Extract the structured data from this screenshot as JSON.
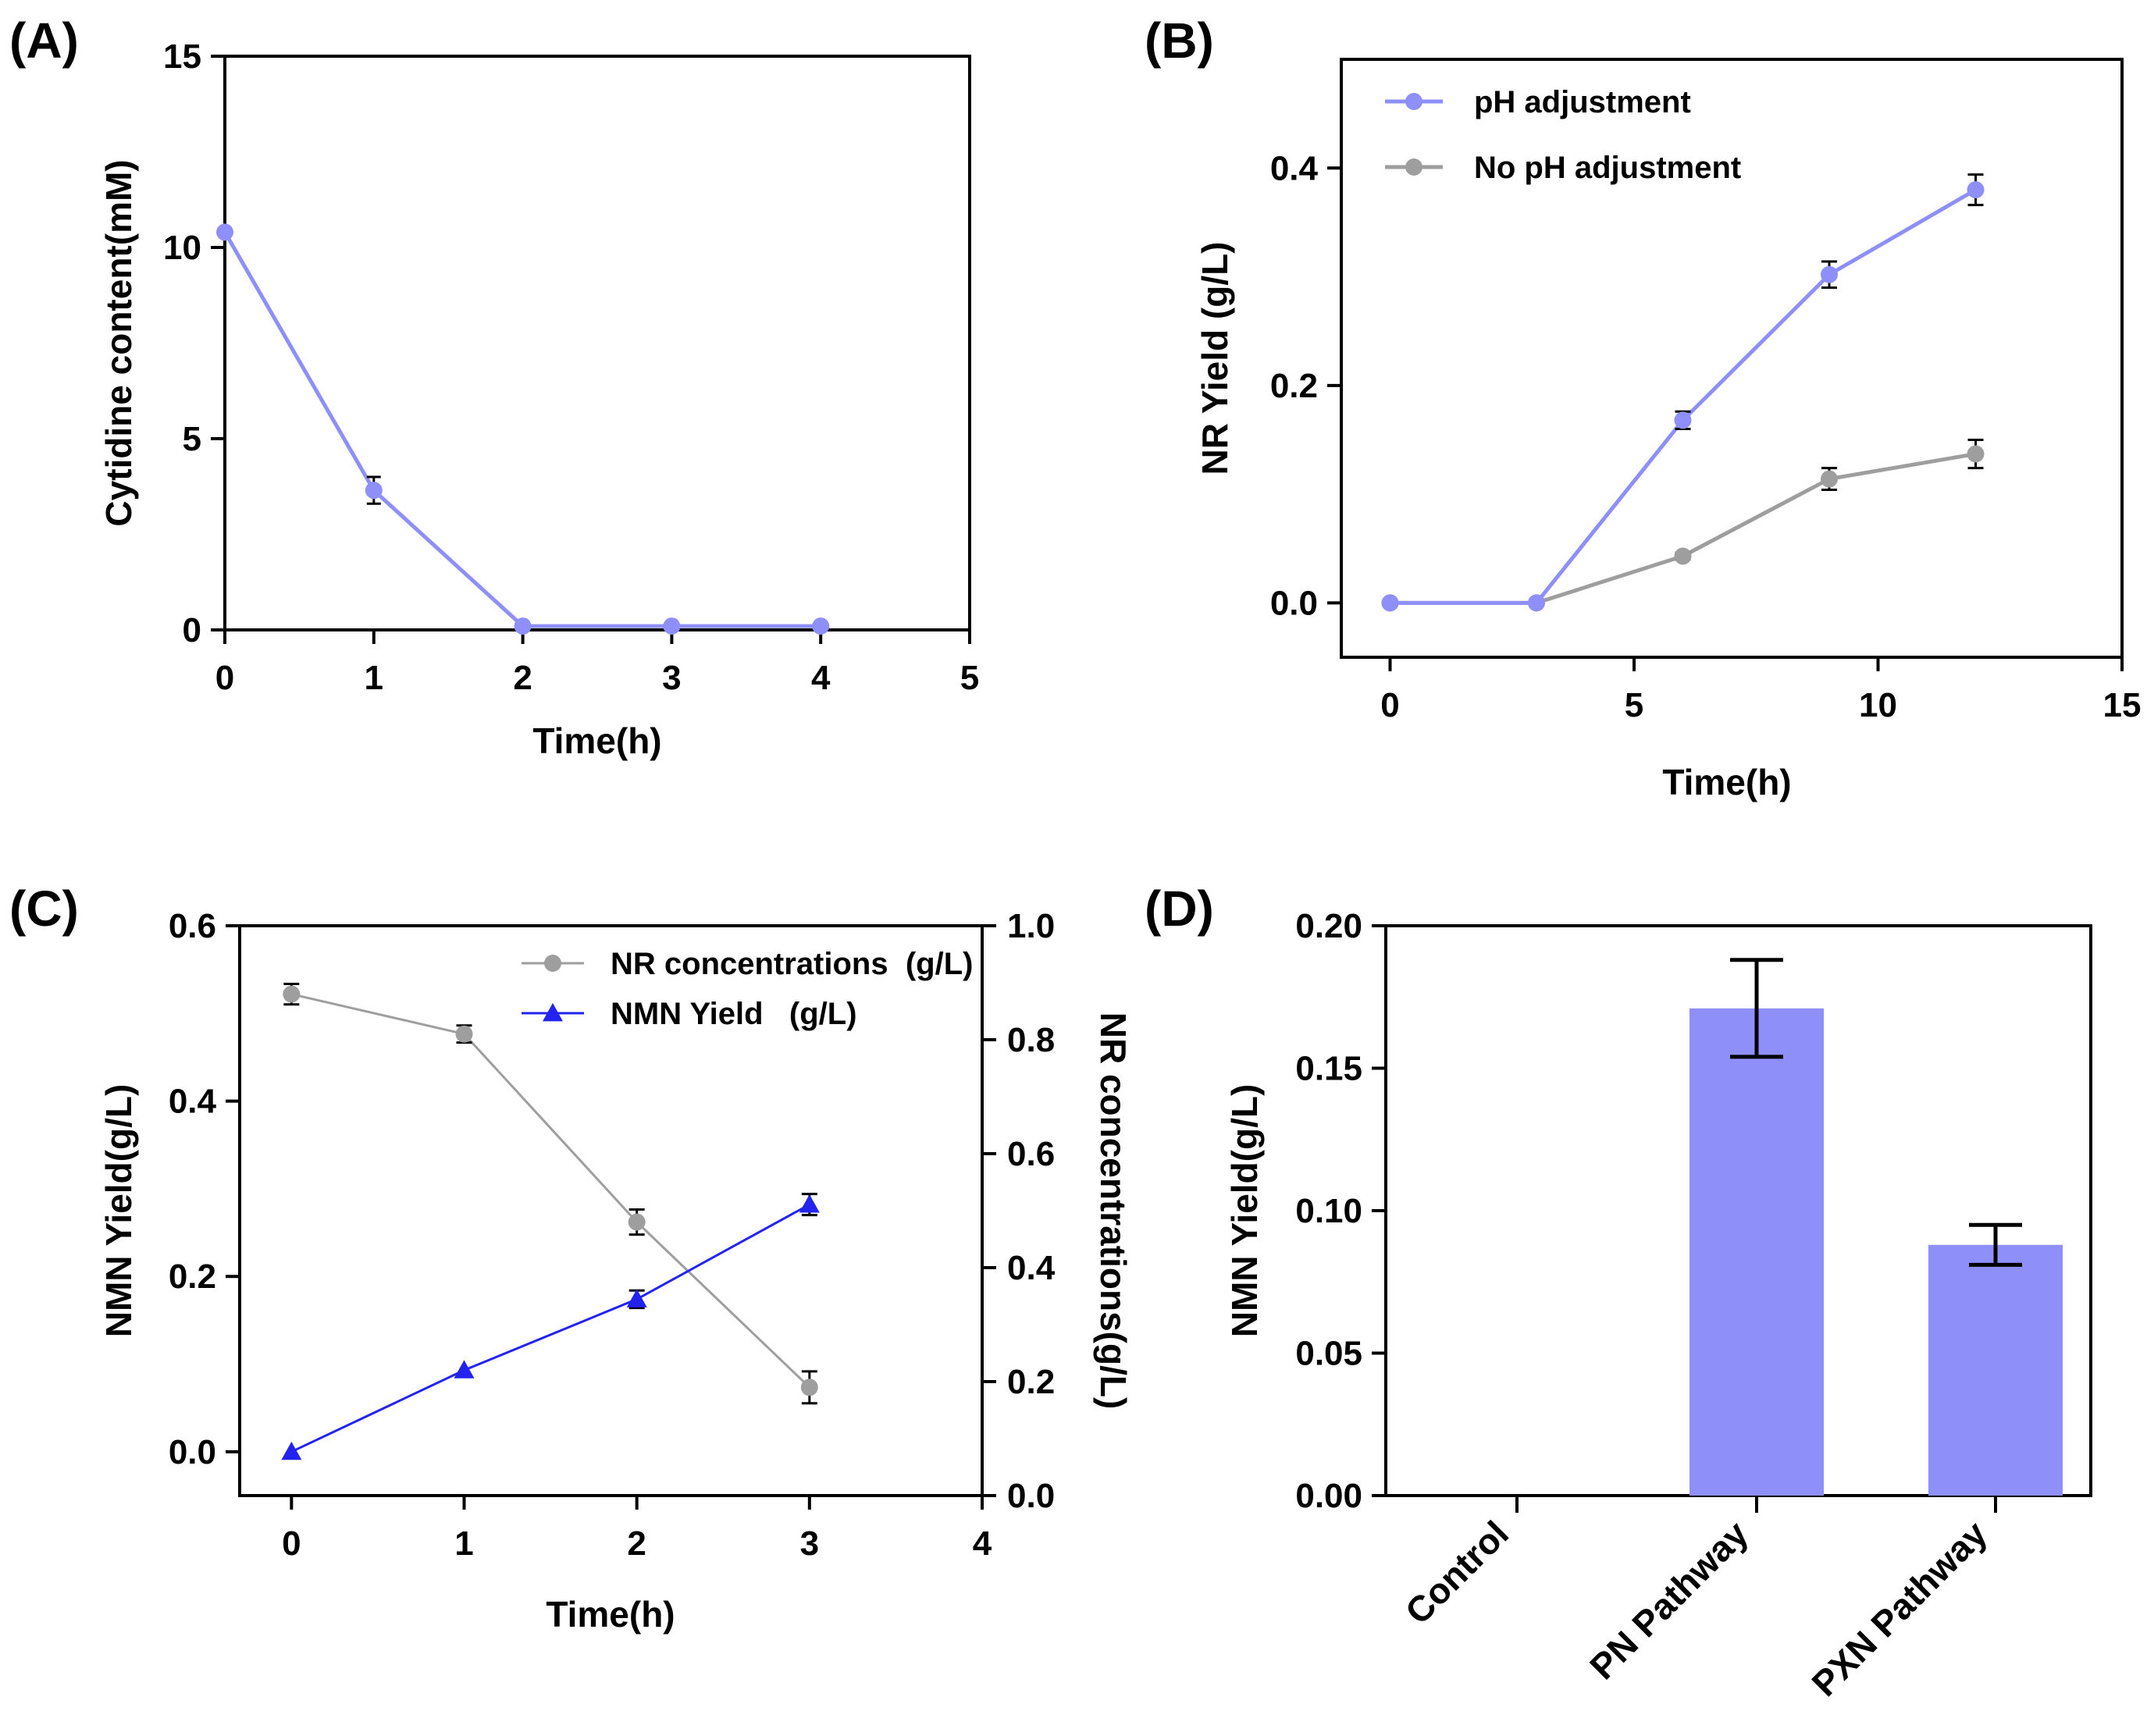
{
  "colors": {
    "purple": "#8f8ffa",
    "gray": "#9e9e9e",
    "blue": "#2323f0",
    "axis": "#000000"
  },
  "chart_data": [
    {
      "panel": "(A)",
      "type": "line",
      "xlabel": "Time(h)",
      "ylabel": "Cytidine content(mM)",
      "xlim": [
        0,
        5
      ],
      "ylim": [
        0,
        15
      ],
      "xticks": [
        "0",
        "1",
        "2",
        "3",
        "4",
        "5"
      ],
      "yticks": [
        "0",
        "5",
        "10",
        "15"
      ],
      "series": [
        {
          "name": "Cytidine",
          "color": "#8f8ffa",
          "marker": "circle",
          "x": [
            0,
            1,
            2,
            3,
            4
          ],
          "y": [
            10.4,
            3.65,
            0.1,
            0.1,
            0.1
          ],
          "err": [
            0,
            0.35,
            0,
            0,
            0
          ]
        }
      ]
    },
    {
      "panel": "(B)",
      "type": "line",
      "xlabel": "Time(h)",
      "ylabel": "NR Yield (g/L)",
      "xlim": [
        -1,
        15
      ],
      "ylim": [
        -0.05,
        0.5
      ],
      "xticks": [
        "0",
        "5",
        "10",
        "15"
      ],
      "yticks": [
        "0.0",
        "0.2",
        "0.4"
      ],
      "legend": "top-left",
      "series": [
        {
          "name": "pH adjustment",
          "color": "#8f8ffa",
          "marker": "circle",
          "x": [
            0,
            3,
            6,
            9,
            12
          ],
          "y": [
            0,
            0,
            0.168,
            0.302,
            0.38
          ],
          "err": [
            0,
            0,
            0.008,
            0.012,
            0.014
          ]
        },
        {
          "name": "No pH adjustment",
          "color": "#9e9e9e",
          "marker": "circle",
          "x": [
            0,
            3,
            6,
            9,
            12
          ],
          "y": [
            0,
            0,
            0.043,
            0.114,
            0.137
          ],
          "err": [
            0,
            0,
            0.003,
            0.01,
            0.013
          ]
        }
      ]
    },
    {
      "panel": "(C)",
      "type": "line",
      "xlabel": "Time(h)",
      "ylabel": "NMN Yield(g/L)",
      "ylabel_right": "NR concentrations(g/L)",
      "xlim": [
        -0.3,
        4
      ],
      "ylim": [
        -0.05,
        0.6
      ],
      "ylim_right": [
        0,
        1.0
      ],
      "xticks": [
        "0",
        "1",
        "2",
        "3",
        "4"
      ],
      "yticks": [
        "0.0",
        "0.2",
        "0.4",
        "0.6"
      ],
      "yticks_right": [
        "0.0",
        "0.2",
        "0.4",
        "0.6",
        "0.8",
        "1.0"
      ],
      "legend": "top-right",
      "series": [
        {
          "name": "NR concentrations  (g/L)",
          "axis": "right",
          "color": "#9e9e9e",
          "marker": "circle",
          "x": [
            0,
            1,
            2,
            3
          ],
          "y": [
            0.88,
            0.81,
            0.48,
            0.19
          ],
          "err": [
            0.018,
            0.015,
            0.022,
            0.028
          ]
        },
        {
          "name": "NMN Yield   (g/L)",
          "axis": "left",
          "color": "#2323f0",
          "marker": "triangle",
          "x": [
            0,
            1,
            2,
            3
          ],
          "y": [
            0,
            0.093,
            0.174,
            0.282
          ],
          "err": [
            0,
            0,
            0.01,
            0.012
          ]
        }
      ]
    },
    {
      "panel": "(D)",
      "type": "bar",
      "ylabel": "NMN Yield(g/L)",
      "ylim": [
        0,
        0.2
      ],
      "yticks": [
        "0.00",
        "0.05",
        "0.10",
        "0.15",
        "0.20"
      ],
      "categories": [
        "Control",
        "PN Pathway",
        "PXN Pathway"
      ],
      "values": [
        0,
        0.171,
        0.088
      ],
      "err": [
        0,
        0.017,
        0.007
      ],
      "color": "#8f8ffa"
    }
  ]
}
